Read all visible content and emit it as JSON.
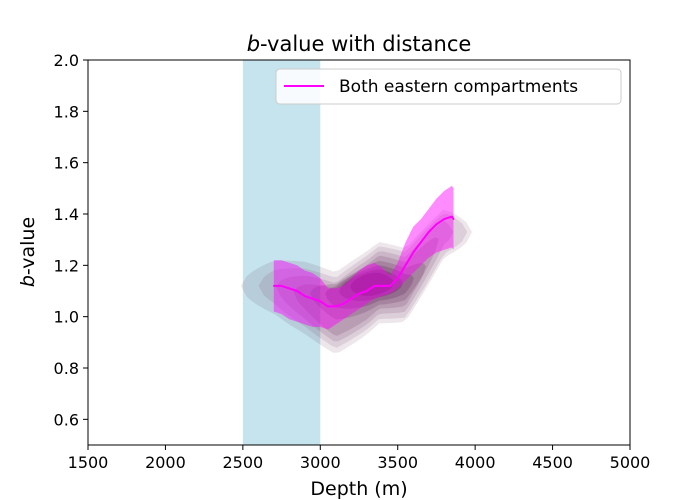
{
  "chart_data": {
    "type": "line",
    "title_italic": "b",
    "title_rest": "-value with distance",
    "xlabel": "Depth (m)",
    "ylabel_italic": "b",
    "ylabel_rest": "-value",
    "xlim": [
      1500,
      5000
    ],
    "ylim": [
      0.5,
      2.0
    ],
    "xticks": [
      "1500",
      "2000",
      "2500",
      "3000",
      "3500",
      "4000",
      "4500",
      "5000"
    ],
    "yticks": [
      "0.6",
      "0.8",
      "1.0",
      "1.2",
      "1.4",
      "1.6",
      "1.8",
      "2.0"
    ],
    "shaded_band": {
      "x0": 2500,
      "x1": 3000,
      "color": "#add8e6"
    },
    "legend": {
      "placement": "top-right"
    },
    "series": [
      {
        "name": "Both eastern compartments",
        "color": "#ff00ff",
        "x": [
          2700,
          2750,
          2800,
          2850,
          2900,
          2950,
          3000,
          3050,
          3100,
          3150,
          3200,
          3250,
          3300,
          3350,
          3400,
          3450,
          3500,
          3550,
          3600,
          3650,
          3700,
          3750,
          3800,
          3850,
          3860
        ],
        "values": [
          1.12,
          1.12,
          1.11,
          1.1,
          1.08,
          1.07,
          1.06,
          1.04,
          1.04,
          1.05,
          1.07,
          1.09,
          1.1,
          1.12,
          1.12,
          1.12,
          1.15,
          1.2,
          1.25,
          1.29,
          1.33,
          1.36,
          1.38,
          1.39,
          1.38
        ],
        "upper": [
          1.22,
          1.22,
          1.21,
          1.2,
          1.18,
          1.17,
          1.15,
          1.11,
          1.11,
          1.12,
          1.15,
          1.18,
          1.2,
          1.21,
          1.19,
          1.16,
          1.21,
          1.29,
          1.35,
          1.38,
          1.42,
          1.46,
          1.49,
          1.51,
          1.5
        ],
        "lower": [
          1.02,
          1.01,
          0.99,
          0.98,
          0.97,
          0.96,
          0.96,
          0.95,
          0.97,
          0.99,
          1.01,
          1.03,
          1.05,
          1.07,
          1.08,
          1.09,
          1.11,
          1.14,
          1.17,
          1.2,
          1.23,
          1.25,
          1.26,
          1.27,
          1.26
        ]
      }
    ],
    "density": {
      "color": "#4b0a3f",
      "x": [
        2700,
        2900,
        3100,
        3300,
        3380,
        3550,
        3800
      ],
      "values": [
        1.12,
        1.08,
        1.02,
        1.1,
        1.14,
        1.13,
        1.33
      ]
    }
  }
}
